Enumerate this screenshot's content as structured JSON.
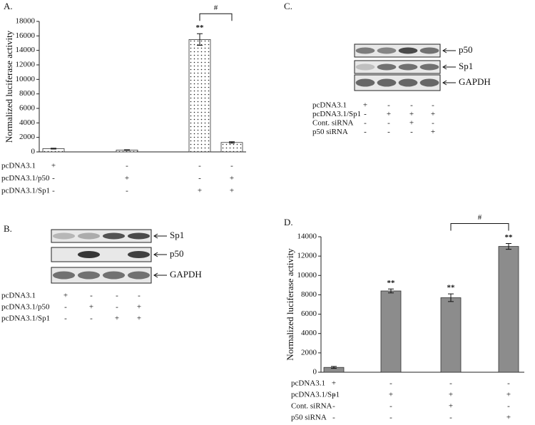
{
  "chart_data": [
    {
      "type": "bar",
      "label": "A.",
      "ylabel": "Normalized luciferase activity",
      "ylim": [
        0,
        18000
      ],
      "yticks": [
        0,
        2000,
        4000,
        6000,
        8000,
        10000,
        12000,
        14000,
        16000,
        18000
      ],
      "values": [
        450,
        250,
        15500,
        1300
      ],
      "errors": [
        60,
        40,
        800,
        100
      ],
      "color": "#ffffff",
      "pattern": "dots",
      "star_labels": [
        null,
        null,
        "**",
        null
      ],
      "bracket_label": "#",
      "conditions": [
        {
          "name": "pcDNA3.1",
          "signs": [
            "+",
            "-",
            "-",
            "-"
          ]
        },
        {
          "name": "pcDNA3.1/p50",
          "signs": [
            "-",
            "+",
            "-",
            "+"
          ]
        },
        {
          "name": "pcDNA3.1/Sp1",
          "signs": [
            "-",
            "-",
            "+",
            "+"
          ]
        }
      ]
    },
    {
      "type": "bar",
      "label": "D.",
      "ylabel": "Normalized luciferase activity",
      "ylim": [
        0,
        14000
      ],
      "yticks": [
        0,
        2000,
        4000,
        6000,
        8000,
        10000,
        12000,
        14000
      ],
      "values": [
        500,
        8400,
        7700,
        13000
      ],
      "errors": [
        100,
        200,
        400,
        300
      ],
      "color": "#8c8c8c",
      "star_labels": [
        null,
        "**",
        "**",
        "**"
      ],
      "bracket_label": "#",
      "conditions": [
        {
          "name": "pcDNA3.1",
          "signs": [
            "+",
            "-",
            "-",
            "-"
          ]
        },
        {
          "name": "pcDNA3.1/Sp1",
          "signs": [
            "-",
            "+",
            "+",
            "+"
          ]
        },
        {
          "name": "Cont. siRNA",
          "signs": [
            "-",
            "-",
            "+",
            "-"
          ]
        },
        {
          "name": "p50 siRNA",
          "signs": [
            "-",
            "-",
            "-",
            "+"
          ]
        }
      ]
    }
  ],
  "blots": [
    {
      "label": "B.",
      "bands": [
        "Sp1",
        "p50",
        "GAPDH"
      ],
      "conditions": [
        {
          "name": "pcDNA3.1",
          "signs": [
            "+",
            "-",
            "-",
            "-"
          ]
        },
        {
          "name": "pcDNA3.1/p50",
          "signs": [
            "-",
            "+",
            "-",
            "+"
          ]
        },
        {
          "name": "pcDNA3.1/Sp1",
          "signs": [
            "-",
            "-",
            "+",
            "+"
          ]
        }
      ]
    },
    {
      "label": "C.",
      "bands": [
        "p50",
        "Sp1",
        "GAPDH"
      ],
      "conditions": [
        {
          "name": "pcDNA3.1",
          "signs": [
            "+",
            "-",
            "-",
            "-"
          ]
        },
        {
          "name": "pcDNA3.1/Sp1",
          "signs": [
            "-",
            "+",
            "+",
            "+"
          ]
        },
        {
          "name": "Cont. siRNA",
          "signs": [
            "-",
            "-",
            "+",
            "-"
          ]
        },
        {
          "name": "p50 siRNA",
          "signs": [
            "-",
            "-",
            "-",
            "+"
          ]
        }
      ]
    }
  ]
}
